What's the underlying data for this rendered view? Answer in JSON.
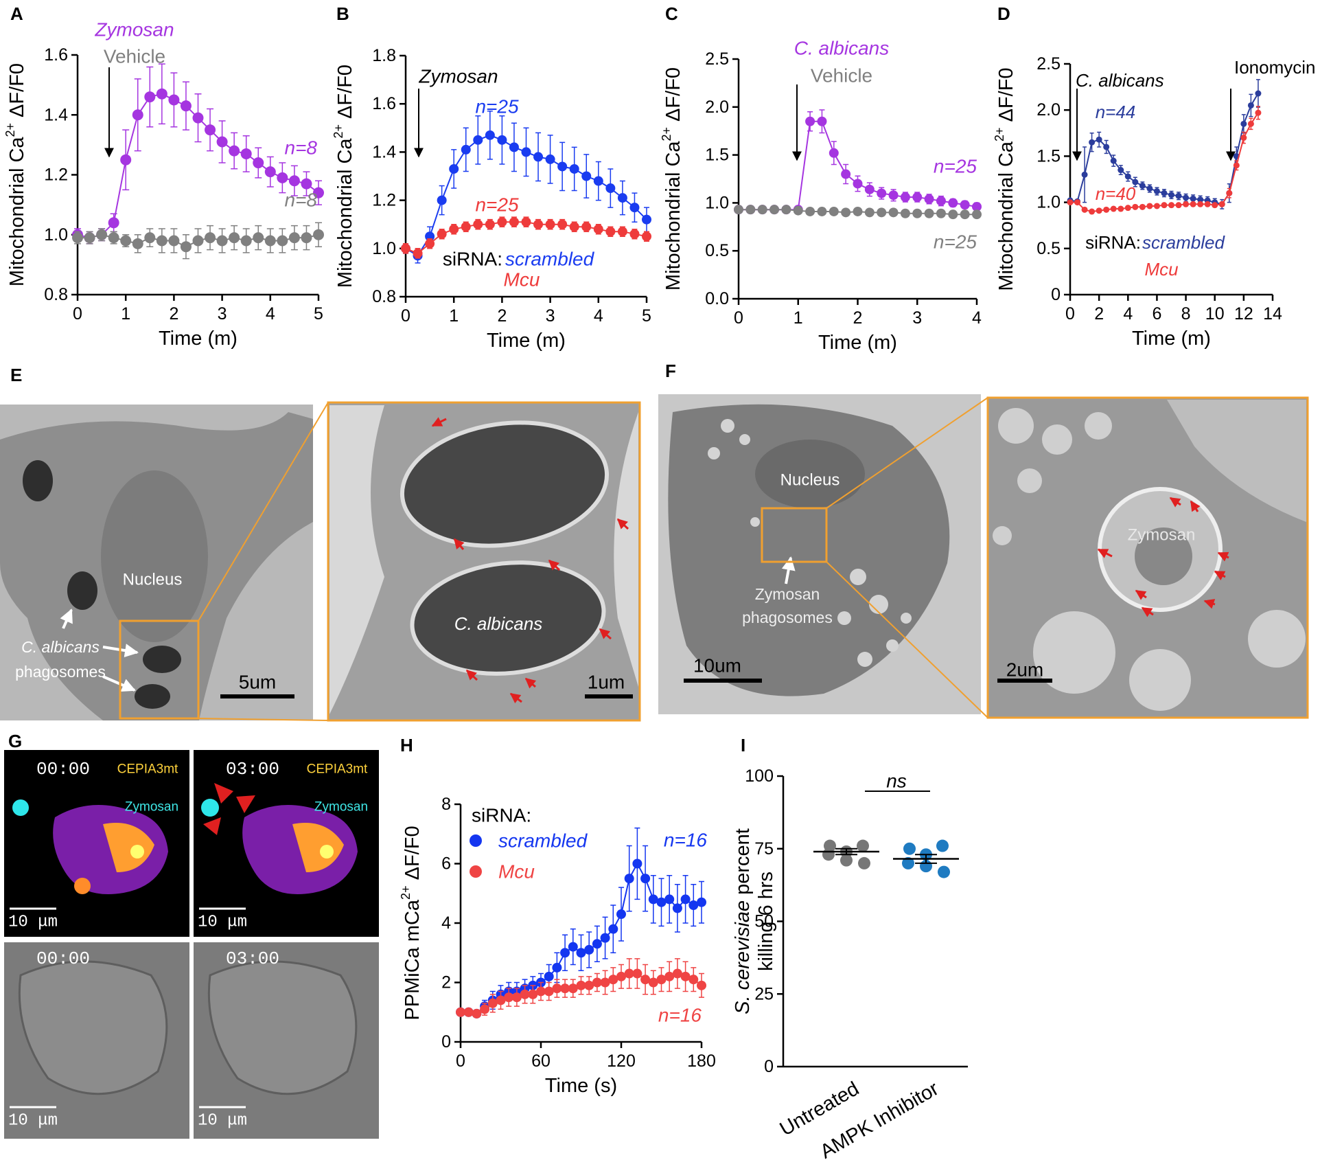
{
  "chart_data": [
    {
      "type": "line",
      "panel": "A",
      "xlabel": "Time (m)",
      "ylabel": [
        "Mitochondrial Ca",
        "2+",
        "ΔF/F0"
      ],
      "x": [
        0,
        0.25,
        0.5,
        0.75,
        1,
        1.25,
        1.5,
        1.75,
        2,
        2.25,
        2.5,
        2.75,
        3,
        3.25,
        3.5,
        3.75,
        4,
        4.25,
        4.5,
        4.75,
        5
      ],
      "xlim": [
        0,
        5
      ],
      "xticks": [
        0,
        1,
        2,
        3,
        4,
        5
      ],
      "ylim": [
        0.8,
        1.6
      ],
      "yticks": [
        0.8,
        {
          "value": 1.0,
          "label": "1.0"
        },
        1.2,
        1.4,
        1.6
      ],
      "series": [
        {
          "name": "Zymosan",
          "color": "#a535e0",
          "values": [
            1.0,
            0.99,
            1.0,
            1.04,
            1.25,
            1.4,
            1.46,
            1.47,
            1.45,
            1.43,
            1.39,
            1.35,
            1.31,
            1.28,
            1.27,
            1.24,
            1.21,
            1.19,
            1.18,
            1.17,
            1.14
          ],
          "errors": [
            0.02,
            0.02,
            0.02,
            0.03,
            0.1,
            0.12,
            0.1,
            0.1,
            0.09,
            0.08,
            0.08,
            0.07,
            0.07,
            0.06,
            0.06,
            0.05,
            0.05,
            0.05,
            0.05,
            0.04,
            0.04
          ]
        },
        {
          "name": "Vehicle",
          "color": "#808080",
          "values": [
            0.99,
            0.99,
            1.0,
            0.99,
            0.98,
            0.97,
            0.99,
            0.98,
            0.98,
            0.96,
            0.98,
            0.99,
            0.98,
            0.99,
            0.98,
            0.99,
            0.98,
            0.98,
            0.99,
            0.99,
            1.0
          ],
          "errors": [
            0.02,
            0.02,
            0.02,
            0.02,
            0.02,
            0.03,
            0.03,
            0.04,
            0.04,
            0.04,
            0.04,
            0.04,
            0.04,
            0.04,
            0.04,
            0.04,
            0.04,
            0.04,
            0.04,
            0.04,
            0.04
          ]
        }
      ],
      "annotations": [
        {
          "text": "n=8",
          "color": "#a535e0"
        },
        {
          "text": "n=8",
          "color": "#808080"
        }
      ]
    },
    {
      "type": "line",
      "panel": "B",
      "xlabel": "Time (m)",
      "ylabel": [
        "Mitochondrial Ca",
        "2+",
        "ΔF/F0"
      ],
      "x": [
        0,
        0.25,
        0.5,
        0.75,
        1,
        1.25,
        1.5,
        1.75,
        2,
        2.25,
        2.5,
        2.75,
        3,
        3.25,
        3.5,
        3.75,
        4,
        4.25,
        4.5,
        4.75,
        5
      ],
      "xlim": [
        0,
        5
      ],
      "xticks": [
        0,
        1,
        2,
        3,
        4,
        5
      ],
      "ylim": [
        0.8,
        1.8
      ],
      "yticks": [
        0.8,
        {
          "value": 1.0,
          "label": "1.0"
        },
        1.2,
        1.4,
        1.6,
        1.8
      ],
      "series": [
        {
          "name": "scrambled",
          "color": "#1a3cf0",
          "values": [
            1.0,
            0.97,
            1.05,
            1.2,
            1.33,
            1.41,
            1.45,
            1.47,
            1.45,
            1.42,
            1.4,
            1.38,
            1.37,
            1.34,
            1.33,
            1.3,
            1.28,
            1.25,
            1.21,
            1.17,
            1.12
          ],
          "errors": [
            0.02,
            0.03,
            0.04,
            0.06,
            0.08,
            0.09,
            0.1,
            0.1,
            0.1,
            0.1,
            0.1,
            0.1,
            0.1,
            0.1,
            0.09,
            0.09,
            0.08,
            0.08,
            0.07,
            0.06,
            0.05
          ]
        },
        {
          "name": "Mcu",
          "color": "#ee3b3b",
          "values": [
            1.0,
            0.98,
            1.02,
            1.06,
            1.08,
            1.09,
            1.1,
            1.1,
            1.11,
            1.11,
            1.11,
            1.1,
            1.1,
            1.1,
            1.09,
            1.09,
            1.08,
            1.07,
            1.07,
            1.06,
            1.05
          ],
          "errors": [
            0.02,
            0.02,
            0.02,
            0.02,
            0.02,
            0.02,
            0.02,
            0.02,
            0.02,
            0.02,
            0.02,
            0.02,
            0.02,
            0.02,
            0.02,
            0.02,
            0.02,
            0.02,
            0.02,
            0.02,
            0.02
          ]
        }
      ],
      "annotations": [
        {
          "text": "Zymosan",
          "color": "#000000"
        },
        {
          "text": "n=25",
          "color": "#1a3cf0"
        },
        {
          "text": "n=25",
          "color": "#ee3b3b"
        },
        {
          "text": "siRNA:",
          "color": "#000000"
        }
      ]
    },
    {
      "type": "line",
      "panel": "C",
      "xlabel": "Time (m)",
      "ylabel": [
        "Mitochondrial Ca",
        "2+",
        "ΔF/F0"
      ],
      "x": [
        0,
        0.2,
        0.4,
        0.6,
        0.8,
        1.0,
        1.2,
        1.4,
        1.6,
        1.8,
        2.0,
        2.2,
        2.4,
        2.6,
        2.8,
        3.0,
        3.2,
        3.4,
        3.6,
        3.8,
        4.0
      ],
      "xlim": [
        0,
        4
      ],
      "xticks": [
        0,
        1,
        2,
        3,
        4
      ],
      "ylim": [
        0,
        2.5
      ],
      "yticks": [
        {
          "value": 0,
          "label": "0.0"
        },
        0.5,
        {
          "value": 1,
          "label": "1.0"
        },
        1.5,
        {
          "value": 2,
          "label": "2.0"
        },
        2.5
      ],
      "series": [
        {
          "name": "C. albicans",
          "color": "#a535e0",
          "values": [
            0.93,
            0.93,
            0.93,
            0.93,
            0.93,
            0.93,
            1.85,
            1.85,
            1.52,
            1.3,
            1.2,
            1.14,
            1.1,
            1.08,
            1.06,
            1.06,
            1.04,
            1.02,
            1.0,
            0.98,
            0.96
          ],
          "errors": [
            0.02,
            0.02,
            0.02,
            0.02,
            0.02,
            0.03,
            0.1,
            0.12,
            0.12,
            0.1,
            0.08,
            0.07,
            0.06,
            0.06,
            0.05,
            0.05,
            0.05,
            0.05,
            0.04,
            0.04,
            0.04
          ]
        },
        {
          "name": "Vehicle",
          "color": "#808080",
          "values": [
            0.93,
            0.93,
            0.93,
            0.93,
            0.93,
            0.92,
            0.91,
            0.91,
            0.91,
            0.9,
            0.91,
            0.9,
            0.9,
            0.9,
            0.89,
            0.89,
            0.89,
            0.89,
            0.88,
            0.88,
            0.88
          ],
          "errors": [
            0.02,
            0.02,
            0.02,
            0.02,
            0.02,
            0.02,
            0.02,
            0.02,
            0.02,
            0.02,
            0.02,
            0.02,
            0.02,
            0.02,
            0.02,
            0.02,
            0.02,
            0.02,
            0.02,
            0.02,
            0.02
          ]
        }
      ],
      "annotations": [
        {
          "text": "n=25",
          "color": "#a535e0"
        },
        {
          "text": "n=25",
          "color": "#808080"
        }
      ]
    },
    {
      "type": "line",
      "panel": "D",
      "xlabel": "Time (m)",
      "ylabel": [
        "Mitochondrial Ca",
        "2+",
        "ΔF/F0"
      ],
      "x": [
        0,
        0.5,
        1,
        1.5,
        2,
        2.5,
        3,
        3.5,
        4,
        4.5,
        5,
        5.5,
        6,
        6.5,
        7,
        7.5,
        8,
        8.5,
        9,
        9.5,
        10,
        10.5,
        11,
        11.5,
        12,
        12.5,
        13
      ],
      "xlim": [
        0,
        14
      ],
      "xticks": [
        0,
        2,
        4,
        6,
        8,
        10,
        12,
        14
      ],
      "ylim": [
        0,
        2.5
      ],
      "yticks": [
        0,
        0.5,
        {
          "value": 1,
          "label": "1.0"
        },
        1.5,
        {
          "value": 2,
          "label": "2.0"
        },
        2.5
      ],
      "series": [
        {
          "name": "scrambled",
          "color": "#2b3d9c",
          "values": [
            1.02,
            1.01,
            1.3,
            1.65,
            1.68,
            1.6,
            1.45,
            1.35,
            1.28,
            1.22,
            1.18,
            1.15,
            1.12,
            1.1,
            1.08,
            1.07,
            1.05,
            1.04,
            1.03,
            1.02,
            1.0,
            0.98,
            1.1,
            1.5,
            1.85,
            2.05,
            2.18
          ],
          "errors": [
            0.02,
            0.02,
            0.3,
            0.1,
            0.08,
            0.07,
            0.06,
            0.05,
            0.05,
            0.05,
            0.04,
            0.04,
            0.04,
            0.04,
            0.04,
            0.04,
            0.04,
            0.04,
            0.04,
            0.04,
            0.04,
            0.05,
            0.1,
            0.1,
            0.1,
            0.12,
            0.15
          ]
        },
        {
          "name": "Mcu",
          "color": "#ee3b3b",
          "values": [
            1.0,
            1.0,
            0.92,
            0.9,
            0.91,
            0.92,
            0.93,
            0.93,
            0.94,
            0.95,
            0.95,
            0.96,
            0.96,
            0.97,
            0.97,
            0.97,
            0.98,
            0.98,
            0.98,
            0.98,
            0.97,
            0.98,
            1.1,
            1.4,
            1.7,
            1.85,
            1.97
          ],
          "errors": [
            0.02,
            0.02,
            0.02,
            0.02,
            0.02,
            0.02,
            0.02,
            0.02,
            0.02,
            0.02,
            0.02,
            0.02,
            0.02,
            0.02,
            0.02,
            0.02,
            0.02,
            0.02,
            0.02,
            0.02,
            0.02,
            0.02,
            0.05,
            0.05,
            0.06,
            0.06,
            0.07
          ]
        }
      ],
      "annotations": [
        {
          "text": "C. albicans",
          "color": "#000000"
        },
        {
          "text": "Ionomycin",
          "color": "#000000"
        },
        {
          "text": "n=44",
          "color": "#2b3d9c"
        },
        {
          "text": "n=40",
          "color": "#ee3b3b"
        },
        {
          "text": "siRNA:",
          "color": "#000000"
        }
      ]
    },
    {
      "type": "line",
      "panel": "H",
      "xlabel": "Time (s)",
      "ylabel": [
        "PPMiCa mCa",
        "2+",
        "ΔF/F0"
      ],
      "x": [
        0,
        6,
        12,
        18,
        24,
        30,
        36,
        42,
        48,
        54,
        60,
        66,
        72,
        78,
        84,
        90,
        96,
        102,
        108,
        114,
        120,
        126,
        132,
        138,
        144,
        150,
        156,
        162,
        168,
        174,
        180
      ],
      "xlim": [
        0,
        180
      ],
      "xticks": [
        0,
        60,
        120,
        180
      ],
      "ylim": [
        0,
        8
      ],
      "yticks": [
        0,
        2,
        4,
        6,
        8
      ],
      "series": [
        {
          "name": "scrambled",
          "color": "#1436f0",
          "values": [
            1.0,
            1.0,
            0.95,
            1.2,
            1.4,
            1.6,
            1.7,
            1.7,
            1.8,
            1.9,
            2.0,
            2.2,
            2.5,
            3.0,
            3.2,
            3.0,
            3.1,
            3.3,
            3.5,
            3.8,
            4.3,
            5.5,
            6.0,
            5.5,
            4.8,
            4.7,
            4.8,
            4.5,
            4.8,
            4.6,
            4.7
          ],
          "errors": [
            0.1,
            0.1,
            0.1,
            0.2,
            0.3,
            0.3,
            0.3,
            0.3,
            0.3,
            0.3,
            0.3,
            0.4,
            0.5,
            0.6,
            0.6,
            0.6,
            0.6,
            0.6,
            0.7,
            0.8,
            0.9,
            1.1,
            1.2,
            1.1,
            0.8,
            0.8,
            0.8,
            0.8,
            0.8,
            0.7,
            0.7
          ]
        },
        {
          "name": "Mcu",
          "color": "#ef4444",
          "values": [
            1.0,
            1.0,
            0.95,
            1.1,
            1.3,
            1.4,
            1.5,
            1.5,
            1.6,
            1.6,
            1.7,
            1.7,
            1.8,
            1.8,
            1.8,
            1.9,
            1.9,
            2.0,
            2.0,
            2.1,
            2.2,
            2.3,
            2.3,
            2.1,
            2.0,
            2.1,
            2.2,
            2.3,
            2.2,
            2.1,
            1.9
          ],
          "errors": [
            0.1,
            0.1,
            0.1,
            0.2,
            0.3,
            0.3,
            0.3,
            0.3,
            0.3,
            0.3,
            0.3,
            0.3,
            0.3,
            0.3,
            0.3,
            0.3,
            0.3,
            0.3,
            0.4,
            0.4,
            0.4,
            0.5,
            0.5,
            0.5,
            0.4,
            0.4,
            0.5,
            0.5,
            0.5,
            0.4,
            0.4
          ]
        }
      ],
      "annotations": [
        {
          "text": "siRNA:",
          "color": "#000000"
        },
        {
          "text": "n=16",
          "color": "#1436f0"
        },
        {
          "text": "n=16",
          "color": "#ef4444"
        }
      ]
    },
    {
      "type": "dot",
      "panel": "I",
      "ylabel": [
        "S. cerevisiae",
        "percent",
        "killing 6 hrs"
      ],
      "categories": [
        "Untreated",
        "AMPK Inhibitor"
      ],
      "colors": [
        "#777777",
        "#1f7bc1"
      ],
      "points": [
        [
          76,
          76,
          74,
          73,
          71,
          70
        ],
        [
          75,
          76,
          73,
          70,
          69,
          67
        ]
      ],
      "means": [
        74,
        71.5
      ],
      "sems": [
        1.0,
        1.5
      ],
      "ylim": [
        0,
        100
      ],
      "yticks": [
        0,
        25,
        50,
        75,
        100
      ],
      "annotations": [
        {
          "text": "ns",
          "color": "#000000"
        }
      ]
    }
  ],
  "micrographs": {
    "E": {
      "panel": "E",
      "nucleus": "Nucleus",
      "phagosome_species": "C. albicans",
      "phagosomes": "phagosomes",
      "scale_left": "5um",
      "inset_species": "C. albicans",
      "scale_right": "1um"
    },
    "F": {
      "panel": "F",
      "nucleus": "Nucleus",
      "phagosome_species": "Zymosan",
      "phagosomes": "phagosomes",
      "scale_left": "10um",
      "inset_particle": "Zymosan",
      "scale_right": "2um"
    },
    "G": {
      "panel": "G",
      "time_start": "00:00",
      "time_end": "03:00",
      "channel_mito": "CEPIA3mt",
      "channel_particle": "Zymosan",
      "scale": "10 μm"
    }
  }
}
